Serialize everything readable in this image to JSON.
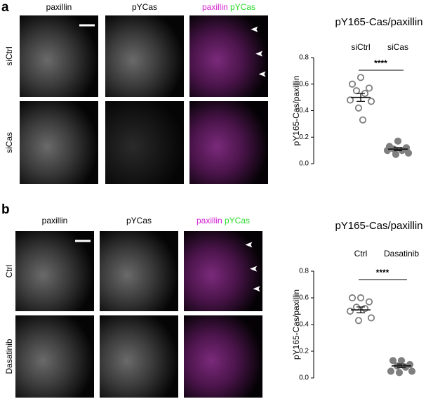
{
  "panels": [
    {
      "label": "a",
      "columns": [
        "paxillin",
        "pYCas"
      ],
      "merge": [
        "paxillin",
        "pYCas"
      ],
      "rows": [
        "siCtrl",
        "siCas"
      ]
    },
    {
      "label": "b",
      "columns": [
        "paxillin",
        "pYCas"
      ],
      "merge": [
        "paxillin",
        "pYCas"
      ],
      "rows": [
        "Ctrl",
        "Dasatinib"
      ]
    }
  ],
  "chart_data": [
    {
      "type": "dot",
      "title": "pY165-Cas/paxillin",
      "ylabel": "pY165-Cas/paxillin",
      "categories": [
        "siCtrl",
        "siCas"
      ],
      "groups": [
        {
          "values": [
            0.65,
            0.6,
            0.57,
            0.55,
            0.53,
            0.48,
            0.47,
            0.42,
            0.33
          ],
          "mean": 0.5,
          "sem": 0.03,
          "color": "#7f7f7f",
          "filled": false
        },
        {
          "values": [
            0.17,
            0.13,
            0.12,
            0.11,
            0.1,
            0.1,
            0.08,
            0.07
          ],
          "mean": 0.11,
          "sem": 0.012,
          "color": "#7f7f7f",
          "filled": true
        }
      ],
      "significance": "****",
      "ylim": [
        0,
        0.8
      ],
      "yticks": [
        {
          "value": 0,
          "label": "0.0"
        },
        {
          "value": 0.2,
          "label": "0.2"
        },
        {
          "value": 0.4,
          "label": "0.4"
        },
        {
          "value": 0.6,
          "label": "0.6"
        },
        {
          "value": 0.8,
          "label": "0.8"
        }
      ]
    },
    {
      "type": "dot",
      "title": "pY165-Cas/paxillin",
      "ylabel": "pY165-Cas/paxillin",
      "categories": [
        "Ctrl",
        "Dasatinib"
      ],
      "groups": [
        {
          "values": [
            0.6,
            0.6,
            0.57,
            0.53,
            0.52,
            0.5,
            0.45,
            0.43
          ],
          "mean": 0.51,
          "sem": 0.022,
          "color": "#7f7f7f",
          "filled": false
        },
        {
          "values": [
            0.13,
            0.13,
            0.1,
            0.09,
            0.08,
            0.05,
            0.05,
            0.04
          ],
          "mean": 0.09,
          "sem": 0.014,
          "color": "#7f7f7f",
          "filled": true
        }
      ],
      "significance": "****",
      "ylim": [
        0,
        0.8
      ],
      "yticks": [
        {
          "value": 0,
          "label": "0.0"
        },
        {
          "value": 0.2,
          "label": "0.2"
        },
        {
          "value": 0.4,
          "label": "0.4"
        },
        {
          "value": 0.6,
          "label": "0.6"
        },
        {
          "value": 0.8,
          "label": "0.8"
        }
      ]
    }
  ]
}
